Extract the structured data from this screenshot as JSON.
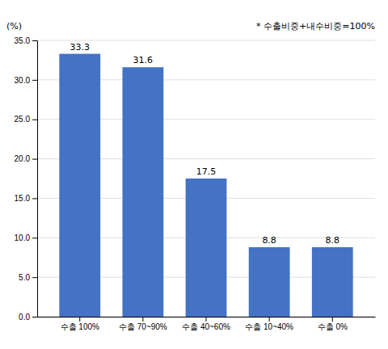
{
  "chart_data": {
    "type": "bar",
    "ylabel": "(%)",
    "annotation": "* 수출비중+내수비중=100%",
    "categories": [
      "수출 100%",
      "수출 70~90%",
      "수출 40~60%",
      "수출 10~40%",
      "수출 0%"
    ],
    "values": [
      33.3,
      31.6,
      17.5,
      8.8,
      8.8
    ],
    "color": "#4472C4",
    "ylim": [
      0,
      35.0
    ],
    "yticks": [
      {
        "value": 0.0,
        "label": "0.0"
      },
      {
        "value": 5.0,
        "label": "5.0"
      },
      {
        "value": 10.0,
        "label": "10.0"
      },
      {
        "value": 15.0,
        "label": "15.0"
      },
      {
        "value": 20.0,
        "label": "20.0"
      },
      {
        "value": 25.0,
        "label": "25.0"
      },
      {
        "value": 30.0,
        "label": "30.0"
      },
      {
        "value": 35.0,
        "label": "35.0"
      }
    ],
    "grid": true,
    "data_labels": true
  }
}
